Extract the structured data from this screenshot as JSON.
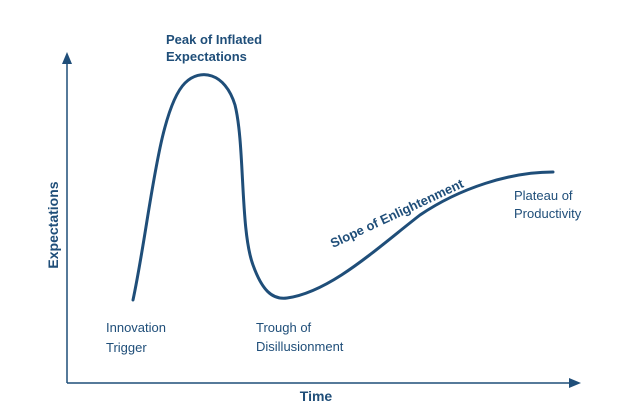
{
  "diagram": {
    "axes": {
      "x_title": "Time",
      "y_title": "Expectations"
    },
    "phases": {
      "innovation_trigger": [
        "Innovation",
        "Trigger"
      ],
      "peak": [
        "Peak of Inflated",
        "Expectations"
      ],
      "trough": [
        "Trough of",
        "Disillusionment"
      ],
      "slope": "Slope of Enlightenment",
      "plateau": [
        "Plateau of",
        "Productivity"
      ]
    },
    "colors": {
      "curve": "#1f4e79",
      "axis": "#1f4e79",
      "text": "#1f4e79"
    }
  }
}
